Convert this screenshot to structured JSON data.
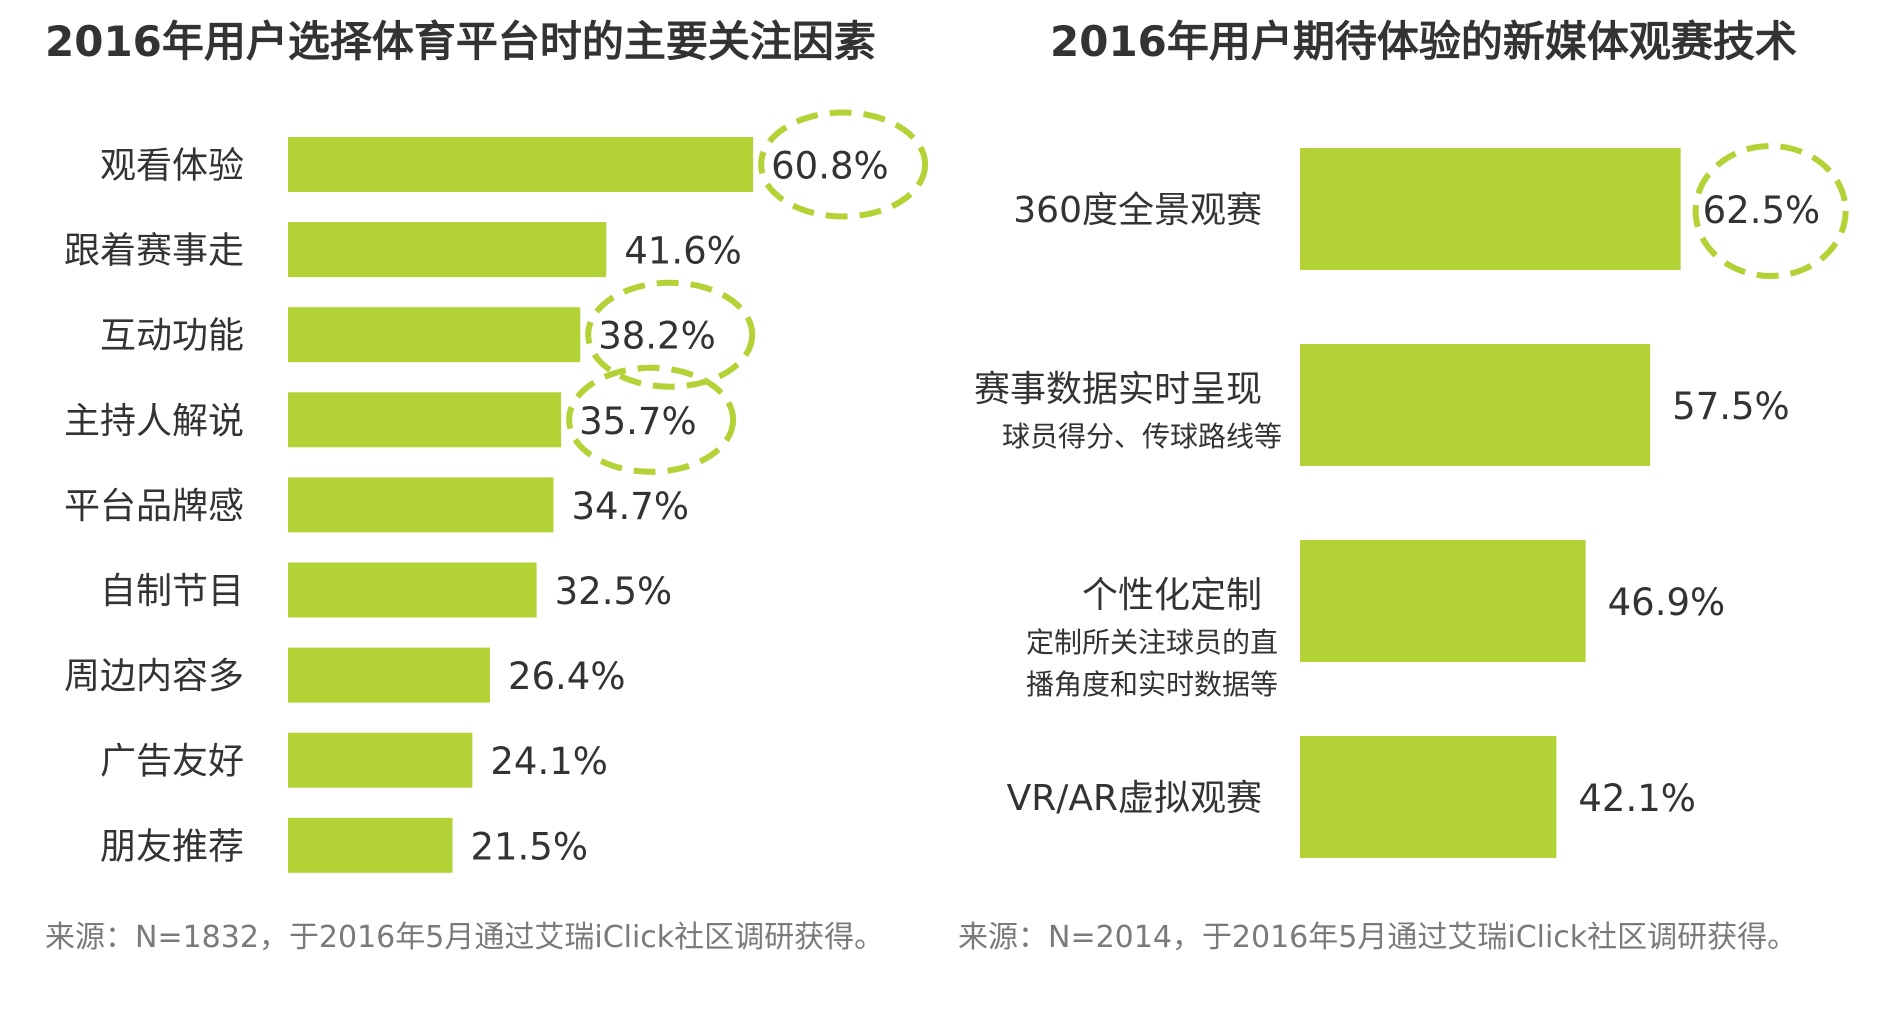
{
  "colors": {
    "bar": "#b2d235",
    "highlight_ring": "#b2d235",
    "text": "#333333",
    "source_text": "#7a7a7a"
  },
  "chart_data": [
    {
      "type": "bar",
      "orientation": "horizontal",
      "title": "2016年用户选择体育平台时的主要关注因素",
      "categories": [
        "观看体验",
        "跟着赛事走",
        "互动功能",
        "主持人解说",
        "平台品牌感",
        "自制节目",
        "周边内容多",
        "广告友好",
        "朋友推荐"
      ],
      "values": [
        60.8,
        41.6,
        38.2,
        35.7,
        34.7,
        32.5,
        26.4,
        24.1,
        21.5
      ],
      "value_labels": [
        "60.8%",
        "41.6%",
        "38.2%",
        "35.7%",
        "34.7%",
        "32.5%",
        "26.4%",
        "24.1%",
        "21.5%"
      ],
      "highlighted": [
        0,
        2,
        3
      ],
      "xlim": [
        0,
        100
      ],
      "source": "来源：N=1832，于2016年5月通过艾瑞iClick社区调研获得。"
    },
    {
      "type": "bar",
      "orientation": "horizontal",
      "title": "2016年用户期待体验的新媒体观赛技术",
      "categories": [
        "360度全景观赛",
        "赛事数据实时呈现",
        "个性化定制",
        "VR/AR虚拟观赛"
      ],
      "subtitles": [
        [],
        [
          "球员得分、传球路线等"
        ],
        [
          "定制所关注球员的直",
          "播角度和实时数据等"
        ],
        []
      ],
      "values": [
        62.5,
        57.5,
        46.9,
        42.1
      ],
      "value_labels": [
        "62.5%",
        "57.5%",
        "46.9%",
        "42.1%"
      ],
      "highlighted": [
        0
      ],
      "xlim": [
        0,
        100
      ],
      "source": "来源：N=2014，于2016年5月通过艾瑞iClick社区调研获得。"
    }
  ]
}
